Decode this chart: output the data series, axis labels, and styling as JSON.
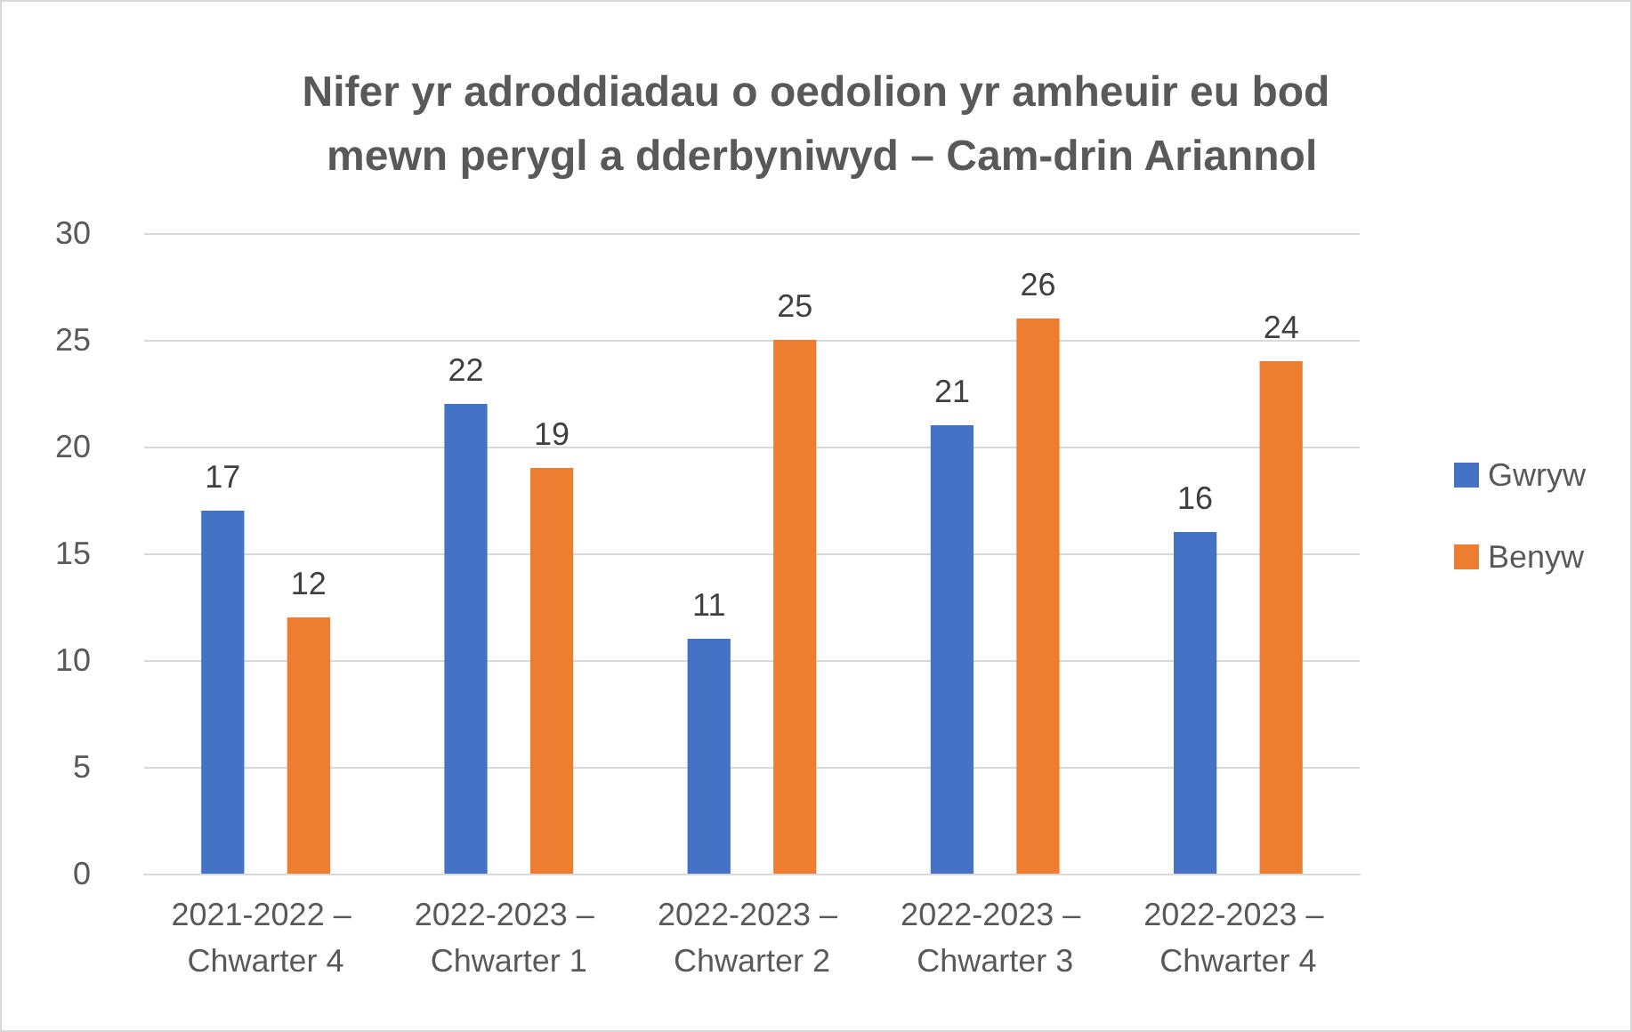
{
  "chart_data": {
    "type": "bar",
    "title": "Nifer yr adroddiadau o oedolion yr amheuir eu bod mewn perygl a dderbyniwyd – Cam-drin Ariannol",
    "categories": [
      "2021-2022 – Chwarter 4",
      "2022-2023 – Chwarter 1",
      "2022-2023 – Chwarter 2",
      "2022-2023 – Chwarter 3",
      "2022-2023 – Chwarter 4"
    ],
    "series": [
      {
        "name": "Gwryw",
        "color": "#4472c4",
        "values": [
          17,
          22,
          11,
          21,
          16
        ]
      },
      {
        "name": "Benyw",
        "color": "#ed7d31",
        "values": [
          12,
          19,
          25,
          26,
          24
        ]
      }
    ],
    "ylim": [
      0,
      30
    ],
    "yticks": [
      0,
      5,
      10,
      15,
      20,
      25,
      30
    ],
    "grid": "y",
    "legend": "right",
    "data_labels": true
  }
}
